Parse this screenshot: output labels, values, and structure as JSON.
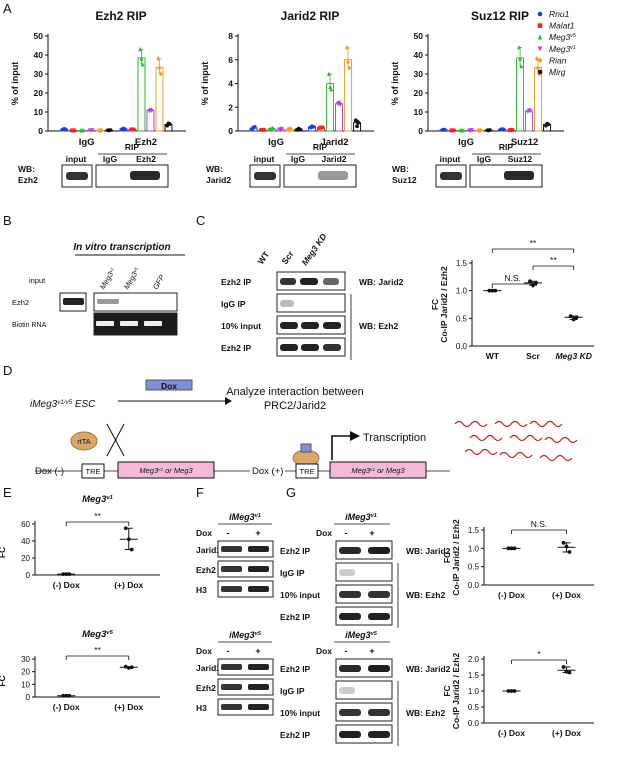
{
  "panels": {
    "A": "A",
    "B": "B",
    "C": "C",
    "D": "D",
    "E": "E",
    "F": "F",
    "G": "G"
  },
  "colors": {
    "Rnu1": "#1f3fd6",
    "Malat1": "#e8282b",
    "Meg3v5": "#2eb82e",
    "Meg3v1": "#b046e0",
    "Rian": "#f39c1f",
    "Mirg": "#111111",
    "pink": "#f3b9d6",
    "blueBox": "#7f8fd6",
    "tan": "#d9a868",
    "red": "#cc1f1f"
  },
  "legend": [
    {
      "label": "Rnu1",
      "color": "#1f3fd6",
      "marker": "circle"
    },
    {
      "label": "Malat1",
      "color": "#e8282b",
      "marker": "square"
    },
    {
      "label": "Meg3",
      "sup": "v5",
      "color": "#2eb82e",
      "marker": "triangle"
    },
    {
      "label": "Meg3",
      "sup": "v1",
      "color": "#b046e0",
      "marker": "tri-down"
    },
    {
      "label": "Rian",
      "color": "#f39c1f",
      "marker": "diamond"
    },
    {
      "label": "Mirg",
      "color": "#111111",
      "marker": "circle"
    }
  ],
  "chart_data": [
    {
      "type": "bar",
      "title": "Ezh2 RIP",
      "ylabel": "% of input",
      "ylim": [
        0,
        50
      ],
      "yticks": [
        0,
        10,
        20,
        30,
        40,
        50
      ],
      "categories": [
        "IgG",
        "Ezh2"
      ],
      "series": [
        {
          "name": "Rnu1",
          "values": [
            0.9,
            1.1
          ],
          "points": [
            [
              0.8,
              1.1,
              0.9
            ],
            [
              1.0,
              1.3,
              1.0
            ]
          ]
        },
        {
          "name": "Malat1",
          "values": [
            0.3,
            0.8
          ],
          "points": [
            [
              0.3,
              0.4,
              0.2
            ],
            [
              0.8,
              0.9,
              0.7
            ]
          ]
        },
        {
          "name": "Meg3v5",
          "values": [
            0.3,
            38.5
          ],
          "points": [
            [
              0.3,
              0.2,
              0.4
            ],
            [
              43,
              38,
              35
            ]
          ]
        },
        {
          "name": "Meg3v1",
          "values": [
            0.4,
            10.8
          ],
          "points": [
            [
              0.4,
              0.3,
              0.5
            ],
            [
              10.5,
              11.2,
              10.7
            ]
          ]
        },
        {
          "name": "Rian",
          "values": [
            0.3,
            33.5
          ],
          "points": [
            [
              0.3,
              0.2,
              0.4
            ],
            [
              38,
              33,
              30
            ]
          ]
        },
        {
          "name": "Mirg",
          "values": [
            0.4,
            3.5
          ],
          "points": [
            [
              0.4,
              0.3,
              0.5
            ],
            [
              2.8,
              4.0,
              3.7
            ]
          ]
        }
      ]
    },
    {
      "type": "bar",
      "title": "Jarid2 RIP",
      "ylabel": "% of input",
      "ylim": [
        0,
        8
      ],
      "yticks": [
        0,
        2,
        4,
        6,
        8
      ],
      "categories": [
        "IgG",
        "Jarid2"
      ],
      "series": [
        {
          "name": "Rnu1",
          "values": [
            0.25,
            0.35
          ],
          "points": [
            [
              0.15,
              0.3,
              0.35
            ],
            [
              0.3,
              0.4,
              0.35
            ]
          ]
        },
        {
          "name": "Malat1",
          "values": [
            0.1,
            0.3
          ],
          "points": [
            [
              0.1,
              0.1,
              0.1
            ],
            [
              0.25,
              0.3,
              0.3
            ]
          ]
        },
        {
          "name": "Meg3v5",
          "values": [
            0.2,
            4.0
          ],
          "points": [
            [
              0.2,
              0.15,
              0.25
            ],
            [
              4.8,
              3.7,
              3.5
            ]
          ]
        },
        {
          "name": "Meg3v1",
          "values": [
            0.15,
            2.3
          ],
          "points": [
            [
              0.15,
              0.1,
              0.2
            ],
            [
              2.3,
              2.4,
              2.2
            ]
          ]
        },
        {
          "name": "Rian",
          "values": [
            0.15,
            6.0
          ],
          "points": [
            [
              0.15,
              0.1,
              0.2
            ],
            [
              7.0,
              5.8,
              5.3
            ]
          ]
        },
        {
          "name": "Mirg",
          "values": [
            0.15,
            0.7
          ],
          "points": [
            [
              0.1,
              0.2,
              0.15
            ],
            [
              0.9,
              0.4,
              0.7
            ]
          ]
        }
      ]
    },
    {
      "type": "bar",
      "title": "Suz12 RIP",
      "ylabel": "% of input",
      "ylim": [
        0,
        50
      ],
      "yticks": [
        0,
        10,
        20,
        30,
        40,
        50
      ],
      "categories": [
        "IgG",
        "Suz12"
      ],
      "series": [
        {
          "name": "Rnu1",
          "values": [
            0.6,
            0.9
          ],
          "points": [
            [
              0.5,
              0.7,
              0.6
            ],
            [
              0.8,
              1.0,
              0.9
            ]
          ]
        },
        {
          "name": "Malat1",
          "values": [
            0.3,
            0.5
          ],
          "points": [
            [
              0.3,
              0.4,
              0.3
            ],
            [
              0.4,
              0.6,
              0.5
            ]
          ]
        },
        {
          "name": "Meg3v5",
          "values": [
            0.3,
            38.5
          ],
          "points": [
            [
              0.3,
              0.2,
              0.4
            ],
            [
              44,
              38,
              34
            ]
          ]
        },
        {
          "name": "Meg3v1",
          "values": [
            0.4,
            10.5
          ],
          "points": [
            [
              0.4,
              0.3,
              0.5
            ],
            [
              10.2,
              11.0,
              10.5
            ]
          ]
        },
        {
          "name": "Rian",
          "values": [
            0.3,
            33.5
          ],
          "points": [
            [
              0.3,
              0.2,
              0.4
            ],
            [
              38,
              33,
              30
            ]
          ]
        },
        {
          "name": "Mirg",
          "values": [
            0.4,
            3.5
          ],
          "points": [
            [
              0.4,
              0.3,
              0.5
            ],
            [
              2.8,
              3.8,
              3.5
            ]
          ]
        }
      ]
    },
    {
      "type": "scatter",
      "ylabel": "Co-IP Jarid2 / Ezh2",
      "ylabel_top": "FC",
      "ylim": [
        0,
        1.5
      ],
      "yticks": [
        "0.0",
        "0.5",
        "1.0",
        "1.5"
      ],
      "categories": [
        "WT",
        "Scr",
        "Meg3 KD"
      ],
      "points": [
        [
          1.0,
          1.0,
          1.0
        ],
        [
          1.17,
          1.1,
          1.14
        ],
        [
          0.54,
          0.48,
          0.52
        ]
      ],
      "means": [
        1.0,
        1.14,
        0.52
      ],
      "significance": [
        {
          "pair": [
            "WT",
            "Scr"
          ],
          "label": "N.S."
        },
        {
          "pair": [
            "Scr",
            "Meg3 KD"
          ],
          "label": "**"
        },
        {
          "pair": [
            "WT",
            "Meg3 KD"
          ],
          "label": "**"
        }
      ]
    },
    {
      "type": "scatter",
      "title": "Meg3",
      "title_sup": "v1",
      "ylabel": "FC",
      "ylim": [
        0,
        60
      ],
      "yticks": [
        "0",
        "20",
        "40",
        "60"
      ],
      "categories": [
        "(-) Dox",
        "(+) Dox"
      ],
      "points": [
        [
          1,
          1,
          1
        ],
        [
          55,
          42,
          30
        ]
      ],
      "means": [
        1,
        42
      ],
      "significance": [
        {
          "pair": [
            "(-) Dox",
            "(+) Dox"
          ],
          "label": "**"
        }
      ]
    },
    {
      "type": "scatter",
      "title": "Meg3",
      "title_sup": "v5",
      "ylabel": "FC",
      "ylim": [
        0,
        30
      ],
      "yticks": [
        "0",
        "10",
        "20",
        "30"
      ],
      "categories": [
        "(-) Dox",
        "(+) Dox"
      ],
      "points": [
        [
          1,
          1,
          1
        ],
        [
          24,
          23,
          23.5
        ]
      ],
      "means": [
        1,
        23.5
      ],
      "significance": [
        {
          "pair": [
            "(-) Dox",
            "(+) Dox"
          ],
          "label": "**"
        }
      ]
    },
    {
      "type": "scatter",
      "ylabel": "Co-IP Jarid2 / Ezh2",
      "ylabel_top": "FC",
      "ylim": [
        0,
        1.5
      ],
      "yticks": [
        "0.0",
        "0.5",
        "1.0",
        "1.5"
      ],
      "categories": [
        "(-) Dox",
        "(+) Dox"
      ],
      "points": [
        [
          1,
          1,
          1
        ],
        [
          1.15,
          1.05,
          0.9
        ]
      ],
      "means": [
        1,
        1.03
      ],
      "significance": [
        {
          "pair": [
            "(-) Dox",
            "(+) Dox"
          ],
          "label": "N.S."
        }
      ]
    },
    {
      "type": "scatter",
      "ylabel": "Co-IP Jarid2 / Ezh2",
      "ylabel_top": "FC",
      "ylim": [
        0,
        2.0
      ],
      "yticks": [
        "0.0",
        "0.5",
        "1.0",
        "1.5",
        "2.0"
      ],
      "categories": [
        "(-) Dox",
        "(+) Dox"
      ],
      "points": [
        [
          1,
          1,
          1
        ],
        [
          1.75,
          1.6,
          1.58
        ]
      ],
      "means": [
        1,
        1.65
      ],
      "significance": [
        {
          "pair": [
            "(-) Dox",
            "(+) Dox"
          ],
          "label": "*"
        }
      ]
    }
  ],
  "blotsA": [
    {
      "wb": "WB:",
      "wb2": "Ezh2",
      "input": "input",
      "rip": "RIP",
      "igg": "IgG",
      "ip": "Ezh2"
    },
    {
      "wb": "WB:",
      "wb2": "Jarid2",
      "input": "input",
      "rip": "RIP",
      "igg": "IgG",
      "ip": "Jarid2"
    },
    {
      "wb": "WB:",
      "wb2": "Suz12",
      "input": "input",
      "rip": "RIP",
      "igg": "IgG",
      "ip": "Suz12"
    }
  ],
  "panelB": {
    "title": "In vitro transcription",
    "lanes": [
      "input",
      "Meg3",
      "Meg3",
      "GFP"
    ],
    "lane_sups": [
      "",
      "v1",
      "v5",
      ""
    ],
    "rows": [
      "Ezh2",
      "Biotin RNA"
    ]
  },
  "panelC": {
    "lanes": [
      "WT",
      "Scr",
      "Meg3 KD"
    ],
    "rows": [
      "Ezh2 IP",
      "IgG IP",
      "10% input",
      "Ezh2 IP"
    ],
    "wb1": "WB: Jarid2",
    "wb2": "WB: Ezh2"
  },
  "panelD": {
    "cell": "iMeg3",
    "cell_sup": "v1/v5",
    "cell_suffix": "ESC",
    "dox": "Dox",
    "analyze1": "Analyze interaction between",
    "analyze2": "PRC2/Jarid2",
    "rtta": "rtTA",
    "dox_minus": "Dox (-)",
    "dox_plus": "Dox (+)",
    "tre": "TRE",
    "construct": "Meg3",
    "construct_sup1": "v1",
    "construct_or": "or Meg3",
    "construct_sup2": "v5",
    "transcription": "Transcription"
  },
  "panelF": [
    {
      "title": "iMeg3",
      "sup": "v1",
      "dox": "Dox",
      "minus": "-",
      "plus": "+",
      "rows": [
        "Jarid2",
        "Ezh2",
        "H3"
      ]
    },
    {
      "title": "iMeg3",
      "sup": "v5",
      "dox": "Dox",
      "minus": "-",
      "plus": "+",
      "rows": [
        "Jarid2",
        "Ezh2",
        "H3"
      ]
    }
  ],
  "panelG": [
    {
      "title": "iMeg3",
      "sup": "v1",
      "dox": "Dox",
      "minus": "-",
      "plus": "+",
      "rows": [
        "Ezh2 IP",
        "IgG IP",
        "10% input",
        "Ezh2 IP"
      ],
      "wb1": "WB: Jarid2",
      "wb2": "WB: Ezh2"
    },
    {
      "title": "iMeg3",
      "sup": "v5",
      "dox": "Dox",
      "minus": "-",
      "plus": "+",
      "rows": [
        "Ezh2 IP",
        "IgG IP",
        "10% input",
        "Ezh2 IP"
      ],
      "wb1": "WB: Jarid2",
      "wb2": "WB: Ezh2"
    }
  ]
}
